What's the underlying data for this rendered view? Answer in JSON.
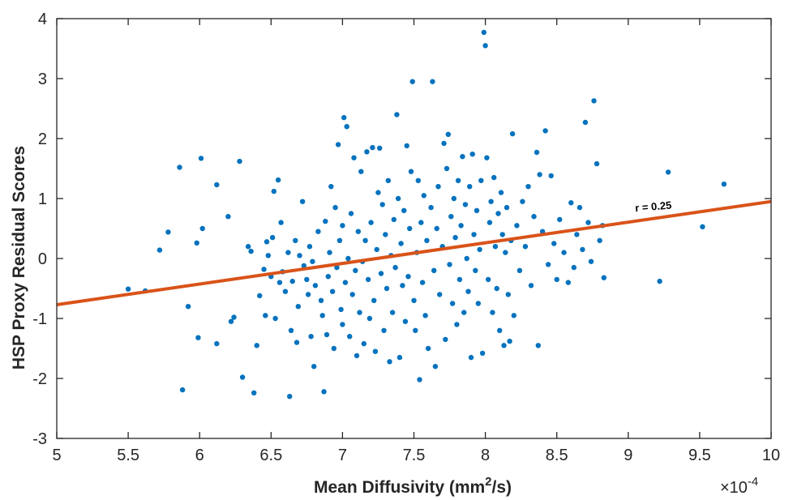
{
  "chart_data": {
    "type": "scatter",
    "title": "",
    "xlabel": "Mean Diffusivity (mm",
    "xlabel_sup": "2",
    "xlabel_tail": "/s)",
    "ylabel": "HSP Proxy Residual Scores",
    "x_exponent_base": "×10",
    "x_exponent_power": "-4",
    "xlim": [
      5,
      10
    ],
    "ylim": [
      -3,
      4
    ],
    "x_ticks": [
      5,
      5.5,
      6,
      6.5,
      7,
      7.5,
      8,
      8.5,
      9,
      9.5,
      10
    ],
    "x_tick_labels": [
      "5",
      "5.5",
      "6",
      "6.5",
      "7",
      "7.5",
      "8",
      "8.5",
      "9",
      "9.5",
      "10"
    ],
    "y_ticks": [
      -3,
      -2,
      -1,
      0,
      1,
      2,
      3,
      4
    ],
    "y_tick_labels": [
      "-3",
      "-2",
      "-1",
      "0",
      "1",
      "2",
      "3",
      "4"
    ],
    "grid": false,
    "point_color": "#0072BD",
    "fit_line": {
      "color": "#D95319",
      "x": [
        5,
        10
      ],
      "y": [
        -0.77,
        0.95
      ]
    },
    "annotation": {
      "text": "r = 0.25",
      "x": 9.05,
      "y": 0.78
    },
    "points": [
      [
        5.5,
        -0.51
      ],
      [
        5.62,
        -0.54
      ],
      [
        5.72,
        0.14
      ],
      [
        5.78,
        0.44
      ],
      [
        5.86,
        1.52
      ],
      [
        5.88,
        -2.19
      ],
      [
        5.92,
        -0.8
      ],
      [
        5.98,
        0.26
      ],
      [
        5.99,
        -1.32
      ],
      [
        6.01,
        1.67
      ],
      [
        6.02,
        0.5
      ],
      [
        6.12,
        1.23
      ],
      [
        6.12,
        -1.42
      ],
      [
        6.2,
        0.7
      ],
      [
        6.22,
        -1.05
      ],
      [
        6.24,
        -0.98
      ],
      [
        6.28,
        1.62
      ],
      [
        6.3,
        -1.98
      ],
      [
        6.34,
        0.2
      ],
      [
        6.36,
        0.12
      ],
      [
        6.38,
        -2.24
      ],
      [
        6.4,
        -1.45
      ],
      [
        6.42,
        -0.62
      ],
      [
        6.45,
        -0.18
      ],
      [
        6.46,
        -0.95
      ],
      [
        6.47,
        0.28
      ],
      [
        6.48,
        0.05
      ],
      [
        6.5,
        -0.3
      ],
      [
        6.51,
        0.35
      ],
      [
        6.52,
        1.12
      ],
      [
        6.53,
        -1.0
      ],
      [
        6.55,
        1.31
      ],
      [
        6.56,
        -0.4
      ],
      [
        6.57,
        0.6
      ],
      [
        6.58,
        -0.22
      ],
      [
        6.6,
        -0.55
      ],
      [
        6.62,
        0.1
      ],
      [
        6.63,
        -2.3
      ],
      [
        6.64,
        -1.2
      ],
      [
        6.65,
        -0.38
      ],
      [
        6.67,
        0.3
      ],
      [
        6.68,
        -1.4
      ],
      [
        6.69,
        -0.8
      ],
      [
        6.7,
        0.05
      ],
      [
        6.72,
        0.95
      ],
      [
        6.73,
        -0.12
      ],
      [
        6.75,
        -0.35
      ],
      [
        6.76,
        -0.6
      ],
      [
        6.77,
        0.2
      ],
      [
        6.78,
        -1.3
      ],
      [
        6.79,
        -0.05
      ],
      [
        6.8,
        -1.8
      ],
      [
        6.81,
        -0.45
      ],
      [
        6.83,
        0.45
      ],
      [
        6.85,
        -0.7
      ],
      [
        6.86,
        -0.95
      ],
      [
        6.87,
        -2.22
      ],
      [
        6.88,
        0.62
      ],
      [
        6.89,
        -1.27
      ],
      [
        6.9,
        -0.3
      ],
      [
        6.91,
        0.1
      ],
      [
        6.92,
        1.2
      ],
      [
        6.93,
        -0.55
      ],
      [
        6.94,
        -1.5
      ],
      [
        6.95,
        0.85
      ],
      [
        6.96,
        -0.15
      ],
      [
        6.97,
        1.9
      ],
      [
        6.98,
        0.3
      ],
      [
        6.99,
        -0.85
      ],
      [
        7.0,
        -1.1
      ],
      [
        7.0,
        0.55
      ],
      [
        7.01,
        2.35
      ],
      [
        7.02,
        -0.4
      ],
      [
        7.03,
        2.2
      ],
      [
        7.04,
        0.0
      ],
      [
        7.05,
        -1.3
      ],
      [
        7.06,
        0.75
      ],
      [
        7.07,
        -0.6
      ],
      [
        7.08,
        1.68
      ],
      [
        7.09,
        -0.2
      ],
      [
        7.1,
        -1.62
      ],
      [
        7.11,
        0.45
      ],
      [
        7.12,
        -0.9
      ],
      [
        7.13,
        1.45
      ],
      [
        7.14,
        -0.05
      ],
      [
        7.15,
        -1.42
      ],
      [
        7.16,
        0.3
      ],
      [
        7.17,
        1.78
      ],
      [
        7.18,
        -0.35
      ],
      [
        7.19,
        -1.0
      ],
      [
        7.2,
        0.6
      ],
      [
        7.21,
        1.85
      ],
      [
        7.22,
        -0.7
      ],
      [
        7.23,
        -1.55
      ],
      [
        7.24,
        0.15
      ],
      [
        7.25,
        1.1
      ],
      [
        7.26,
        1.84
      ],
      [
        7.27,
        -0.25
      ],
      [
        7.28,
        0.9
      ],
      [
        7.29,
        -1.2
      ],
      [
        7.3,
        0.4
      ],
      [
        7.31,
        -0.5
      ],
      [
        7.32,
        1.3
      ],
      [
        7.33,
        -1.72
      ],
      [
        7.34,
        0.05
      ],
      [
        7.35,
        -0.9
      ],
      [
        7.36,
        0.65
      ],
      [
        7.37,
        -0.15
      ],
      [
        7.38,
        2.4
      ],
      [
        7.39,
        1.0
      ],
      [
        7.4,
        -1.65
      ],
      [
        7.41,
        0.25
      ],
      [
        7.42,
        -0.45
      ],
      [
        7.43,
        0.8
      ],
      [
        7.44,
        -1.05
      ],
      [
        7.45,
        1.88
      ],
      [
        7.46,
        -0.3
      ],
      [
        7.47,
        0.5
      ],
      [
        7.48,
        1.45
      ],
      [
        7.49,
        2.95
      ],
      [
        7.5,
        -0.7
      ],
      [
        7.51,
        -1.2
      ],
      [
        7.52,
        0.1
      ],
      [
        7.53,
        1.3
      ],
      [
        7.54,
        -2.02
      ],
      [
        7.55,
        0.6
      ],
      [
        7.56,
        -0.4
      ],
      [
        7.57,
        1.05
      ],
      [
        7.58,
        -0.95
      ],
      [
        7.59,
        0.3
      ],
      [
        7.6,
        -1.5
      ],
      [
        7.62,
        0.85
      ],
      [
        7.63,
        2.95
      ],
      [
        7.64,
        -0.2
      ],
      [
        7.65,
        -1.8
      ],
      [
        7.66,
        0.5
      ],
      [
        7.67,
        1.2
      ],
      [
        7.68,
        -0.6
      ],
      [
        7.7,
        0.2
      ],
      [
        7.71,
        1.92
      ],
      [
        7.72,
        -1.35
      ],
      [
        7.73,
        1.5
      ],
      [
        7.74,
        2.07
      ],
      [
        7.75,
        -0.1
      ],
      [
        7.76,
        0.7
      ],
      [
        7.77,
        -0.75
      ],
      [
        7.78,
        1.0
      ],
      [
        7.79,
        0.35
      ],
      [
        7.8,
        -1.1
      ],
      [
        7.81,
        1.3
      ],
      [
        7.82,
        -0.35
      ],
      [
        7.83,
        0.55
      ],
      [
        7.84,
        1.7
      ],
      [
        7.85,
        -0.9
      ],
      [
        7.86,
        0.9
      ],
      [
        7.87,
        0.0
      ],
      [
        7.88,
        -0.55
      ],
      [
        7.89,
        1.2
      ],
      [
        7.9,
        -1.65
      ],
      [
        7.91,
        1.74
      ],
      [
        7.92,
        0.4
      ],
      [
        7.93,
        -0.2
      ],
      [
        7.94,
        0.8
      ],
      [
        7.95,
        -0.75
      ],
      [
        7.96,
        0.15
      ],
      [
        7.97,
        1.3
      ],
      [
        7.98,
        -1.58
      ],
      [
        7.99,
        3.77
      ],
      [
        8.0,
        3.55
      ],
      [
        8.01,
        1.68
      ],
      [
        8.02,
        -0.35
      ],
      [
        8.03,
        0.6
      ],
      [
        8.04,
        0.95
      ],
      [
        8.05,
        -0.9
      ],
      [
        8.06,
        1.35
      ],
      [
        8.07,
        0.2
      ],
      [
        8.08,
        -0.5
      ],
      [
        8.09,
        0.75
      ],
      [
        8.1,
        -1.2
      ],
      [
        8.11,
        1.1
      ],
      [
        8.12,
        0.4
      ],
      [
        8.13,
        -1.45
      ],
      [
        8.14,
        0.1
      ],
      [
        8.15,
        0.85
      ],
      [
        8.16,
        -0.6
      ],
      [
        8.17,
        -1.38
      ],
      [
        8.18,
        0.3
      ],
      [
        8.19,
        2.08
      ],
      [
        8.2,
        -0.95
      ],
      [
        8.22,
        0.55
      ],
      [
        8.24,
        -0.2
      ],
      [
        8.26,
        0.95
      ],
      [
        8.28,
        0.2
      ],
      [
        8.3,
        1.2
      ],
      [
        8.32,
        -0.45
      ],
      [
        8.34,
        0.7
      ],
      [
        8.36,
        1.77
      ],
      [
        8.37,
        -1.45
      ],
      [
        8.38,
        1.4
      ],
      [
        8.4,
        0.45
      ],
      [
        8.42,
        2.13
      ],
      [
        8.44,
        -0.1
      ],
      [
        8.46,
        1.38
      ],
      [
        8.48,
        0.25
      ],
      [
        8.5,
        -0.35
      ],
      [
        8.52,
        0.65
      ],
      [
        8.55,
        0.1
      ],
      [
        8.58,
        -0.4
      ],
      [
        8.6,
        0.93
      ],
      [
        8.62,
        -0.15
      ],
      [
        8.64,
        0.4
      ],
      [
        8.66,
        0.85
      ],
      [
        8.68,
        0.15
      ],
      [
        8.7,
        2.27
      ],
      [
        8.72,
        0.6
      ],
      [
        8.74,
        -0.05
      ],
      [
        8.76,
        2.63
      ],
      [
        8.78,
        1.58
      ],
      [
        8.8,
        0.3
      ],
      [
        8.82,
        0.55
      ],
      [
        8.83,
        -0.32
      ],
      [
        9.22,
        -0.38
      ],
      [
        9.28,
        1.44
      ],
      [
        9.52,
        0.53
      ],
      [
        9.67,
        1.24
      ]
    ]
  }
}
